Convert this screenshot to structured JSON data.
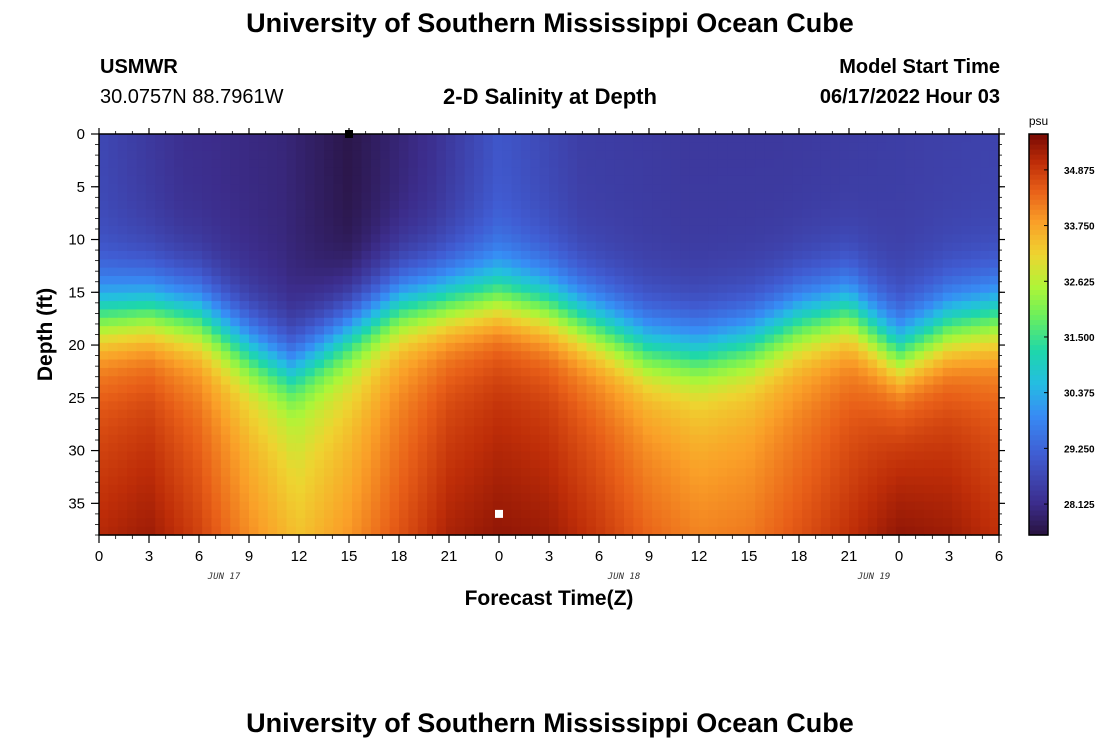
{
  "header": {
    "title": "University of Southern Mississippi Ocean Cube",
    "station_id": "USMWR",
    "coordinates": "30.0757N  88.7961W",
    "subtitle": "2-D Salinity at Depth",
    "model_start_label": "Model Start Time",
    "model_start_value": "06/17/2022 Hour 03"
  },
  "footer": {
    "title": "University of Southern Mississippi Ocean Cube"
  },
  "chart_data": {
    "type": "heatmap",
    "xlabel": "Forecast Time(Z)",
    "ylabel": "Depth (ft)",
    "x_ticks": [
      "0",
      "3",
      "6",
      "9",
      "12",
      "15",
      "18",
      "21",
      "0",
      "3",
      "6",
      "9",
      "12",
      "15",
      "18",
      "21",
      "0",
      "3",
      "6"
    ],
    "date_labels": [
      {
        "label": "JUN 17",
        "tick_index": 2.5
      },
      {
        "label": "JUN 18",
        "tick_index": 10.5
      },
      {
        "label": "JUN 19",
        "tick_index": 15.5
      }
    ],
    "x_range_hours": [
      0,
      54
    ],
    "ylim": [
      0,
      38
    ],
    "y_ticks": [
      0,
      5,
      10,
      15,
      20,
      25,
      30,
      35
    ],
    "y_inverted": true,
    "colorbar": {
      "unit": "psu",
      "range": [
        27.5,
        35.6
      ],
      "tick_values": [
        28.125,
        29.25,
        30.375,
        31.5,
        32.625,
        33.75,
        34.875
      ],
      "tick_labels": [
        "28.125",
        "29.250",
        "30.375",
        "31.500",
        "32.625",
        "33.750",
        "34.875"
      ]
    },
    "surface_fresh_values": {
      "hours": [
        0,
        5,
        11,
        15,
        20,
        24,
        29,
        35,
        41,
        48,
        54
      ],
      "psu": [
        28.7,
        28.2,
        28.0,
        27.6,
        28.2,
        29.0,
        28.5,
        28.4,
        28.4,
        28.5,
        28.6
      ]
    },
    "halocline_depth_ft": {
      "hours": [
        0,
        3,
        6,
        9,
        11.5,
        15,
        18,
        21,
        24,
        27,
        30,
        33,
        36,
        39,
        42,
        45,
        48,
        51,
        54
      ],
      "depth": [
        17.5,
        17.0,
        17.5,
        20.5,
        22.5,
        19.0,
        16.5,
        16.0,
        15.5,
        16.5,
        18.5,
        20.5,
        21.0,
        20.0,
        18.0,
        17.0,
        21.0,
        18.5,
        17.5
      ]
    },
    "halocline_thickness_ft": 7,
    "deep_values": {
      "hours": [
        0,
        3,
        6,
        9,
        12,
        15,
        18,
        21,
        24,
        27,
        30,
        33,
        36,
        39,
        42,
        45,
        48,
        51,
        54
      ],
      "psu": [
        35.1,
        35.3,
        34.8,
        34.0,
        33.4,
        33.9,
        34.6,
        35.2,
        35.4,
        35.3,
        34.9,
        34.4,
        34.1,
        34.2,
        34.6,
        35.0,
        35.4,
        35.3,
        35.0
      ]
    },
    "markers": [
      {
        "hour": 15,
        "depth": 0,
        "color": "#000000"
      },
      {
        "hour": 24,
        "depth": 36,
        "color": "#ffffff"
      }
    ]
  }
}
